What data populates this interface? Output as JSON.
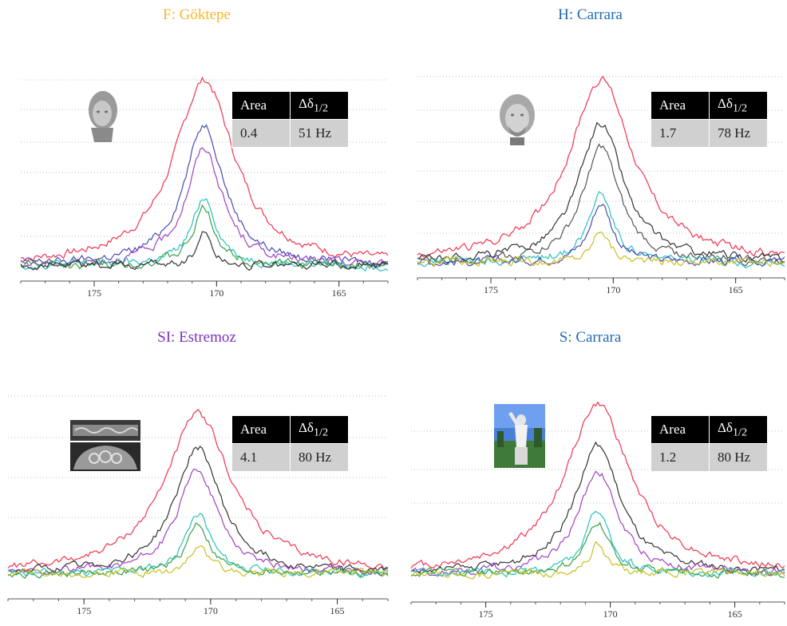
{
  "colors": {
    "title_colors": [
      "#f5b82e",
      "#1f6bb5",
      "#7b2fbf",
      "#1f6bb5"
    ],
    "series_colors": [
      "#f0344e",
      "#4a4ab0",
      "#a040c0",
      "#28c0c0",
      "#38a048",
      "#c8c020",
      "#333333"
    ],
    "table_header_bg": "#000000",
    "table_value_bg": "#d0d0d0"
  },
  "panels": [
    {
      "title": "F: Göktepe",
      "table": {
        "area_label": "Area",
        "width_label": "Δδ",
        "width_sub": "1/2",
        "area_value": "0.4",
        "width_value": "51 Hz"
      },
      "photo_icon": "marble-head-icon"
    },
    {
      "title": "H: Carrara",
      "table": {
        "area_label": "Area",
        "width_label": "Δδ",
        "width_sub": "1/2",
        "area_value": "1.7",
        "width_value": "78 Hz"
      },
      "photo_icon": "bearded-head-icon"
    },
    {
      "title": "SI: Estremoz",
      "table": {
        "area_label": "Area",
        "width_label": "Δδ",
        "width_sub": "1/2",
        "area_value": "4.1",
        "width_value": "80 Hz"
      },
      "photo_icon": "sarcophagus-relief-icon"
    },
    {
      "title": "S: Carrara",
      "table": {
        "area_label": "Area",
        "width_label": "Δδ",
        "width_sub": "1/2",
        "area_value": "1.2",
        "width_value": "80 Hz"
      },
      "photo_icon": "statue-outdoor-icon"
    }
  ],
  "chart_data": [
    {
      "type": "line",
      "title": "F: Göktepe",
      "x_ticks": [
        175,
        170,
        165
      ],
      "xlim": [
        178,
        163
      ],
      "peak_center": 170.5,
      "series": [
        {
          "color": "#f0344e",
          "peak": 0.92,
          "width": 1.5
        },
        {
          "color": "#4a4ab0",
          "peak": 0.7,
          "width": 1.0
        },
        {
          "color": "#a040c0",
          "peak": 0.58,
          "width": 0.9
        },
        {
          "color": "#28c0c0",
          "peak": 0.34,
          "width": 0.6
        },
        {
          "color": "#38a048",
          "peak": 0.28,
          "width": 0.55
        },
        {
          "color": "#333333",
          "peak": 0.17,
          "width": 0.35
        }
      ]
    },
    {
      "type": "line",
      "title": "H: Carrara",
      "x_ticks": [
        175,
        170,
        165
      ],
      "xlim": [
        178,
        163
      ],
      "peak_center": 170.5,
      "series": [
        {
          "color": "#f0344e",
          "peak": 0.92,
          "width": 1.6
        },
        {
          "color": "#333333",
          "peak": 0.7,
          "width": 1.1
        },
        {
          "color": "#555555",
          "peak": 0.58,
          "width": 0.9
        },
        {
          "color": "#28c0c0",
          "peak": 0.36,
          "width": 0.6
        },
        {
          "color": "#4a4ab0",
          "peak": 0.3,
          "width": 0.55
        },
        {
          "color": "#c8c020",
          "peak": 0.17,
          "width": 0.4
        }
      ]
    },
    {
      "type": "line",
      "title": "SI: Estremoz",
      "x_ticks": [
        175,
        170,
        165
      ],
      "xlim": [
        178,
        163
      ],
      "peak_center": 170.5,
      "series": [
        {
          "color": "#f0344e",
          "peak": 0.88,
          "width": 1.6
        },
        {
          "color": "#333333",
          "peak": 0.7,
          "width": 1.1
        },
        {
          "color": "#a040c0",
          "peak": 0.58,
          "width": 0.95
        },
        {
          "color": "#28c0c0",
          "peak": 0.34,
          "width": 0.6
        },
        {
          "color": "#38a048",
          "peak": 0.28,
          "width": 0.55
        },
        {
          "color": "#c8c020",
          "peak": 0.16,
          "width": 0.4
        }
      ]
    },
    {
      "type": "line",
      "title": "S: Carrara",
      "x_ticks": [
        175,
        170,
        165
      ],
      "xlim": [
        178,
        163
      ],
      "peak_center": 170.5,
      "series": [
        {
          "color": "#f0344e",
          "peak": 0.92,
          "width": 1.6
        },
        {
          "color": "#333333",
          "peak": 0.7,
          "width": 1.1
        },
        {
          "color": "#a040c0",
          "peak": 0.56,
          "width": 0.95
        },
        {
          "color": "#28c0c0",
          "peak": 0.34,
          "width": 0.6
        },
        {
          "color": "#38a048",
          "peak": 0.28,
          "width": 0.55
        },
        {
          "color": "#c8c020",
          "peak": 0.16,
          "width": 0.4
        }
      ]
    }
  ]
}
